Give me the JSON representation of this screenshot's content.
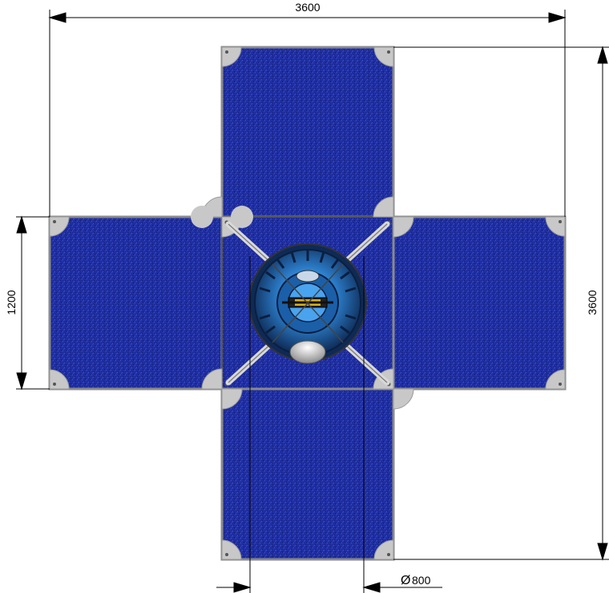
{
  "dimensions": {
    "top_width": "3600",
    "right_height": "3600",
    "left_height": "1200",
    "bottom_diameter": "800",
    "diameter_symbol": "Ø"
  },
  "colors": {
    "panel_blue": "#1f2ea0",
    "panel_blue_light": "#3040b8",
    "corner_gray": "#c8c8c8",
    "frame_gray": "#8a8a8a",
    "hub_blue": "#2f86d6",
    "hub_dark": "#0e2a55",
    "dim_line": "#000000"
  }
}
